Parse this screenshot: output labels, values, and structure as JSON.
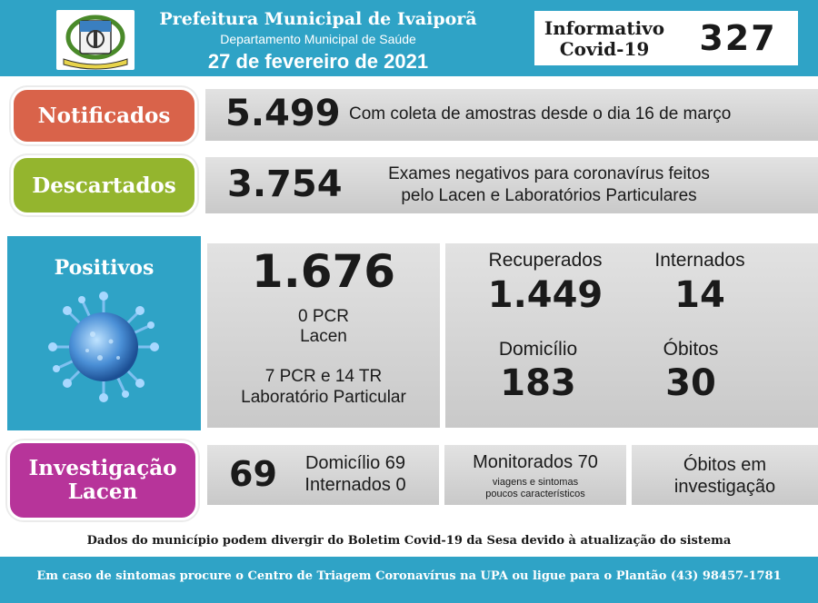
{
  "header": {
    "title": "Prefeitura Municipal de Ivaiporã",
    "department": "Departamento Municipal de Saúde",
    "date": "27 de fevereiro de 2021",
    "bulletin_label_line1": "Informativo",
    "bulletin_label_line2": "Covid-19",
    "bulletin_number": "327",
    "logo_icon": "municipal-coat-of-arms"
  },
  "notificados": {
    "label": "Notificados",
    "value": "5.499",
    "description": "Com coleta de amostras desde o dia 16 de março"
  },
  "descartados": {
    "label": "Descartados",
    "value": "3.754",
    "description_line1": "Exames negativos para coronavírus feitos",
    "description_line2": "pelo Lacen e Laboratórios Particulares"
  },
  "positivos": {
    "label": "Positivos",
    "value": "1.676",
    "lacen_line1": "0 PCR",
    "lacen_line2": "Lacen",
    "particular_line1": "7 PCR e 14 TR",
    "particular_line2": "Laboratório Particular",
    "icon": "coronavirus-icon"
  },
  "stats": {
    "recuperados_label": "Recuperados",
    "recuperados_value": "1.449",
    "internados_label": "Internados",
    "internados_value": "14",
    "domicilio_label": "Domicílio",
    "domicilio_value": "183",
    "obitos_label": "Óbitos",
    "obitos_value": "30"
  },
  "investigacao": {
    "label_line1": "Investigação",
    "label_line2": "Lacen",
    "value": "69",
    "domicilio": "Domicílio 69",
    "internados": "Internados 0",
    "monitorados": "Monitorados 70",
    "monitorados_sub1": "viagens e sintomas",
    "monitorados_sub2": "poucos característicos",
    "obitos_line1": "Óbitos em",
    "obitos_line2": "investigação"
  },
  "disclaimer": "Dados do município podem divergir do Boletim Covid-19 da Sesa devido à atualização do sistema",
  "footer": "Em caso de sintomas procure o Centro de Triagem Coronavírus na UPA ou ligue para o Plantão (43) 98457-1781",
  "colors": {
    "header_blue": "#2fa3c6",
    "notificados": "#d9634a",
    "descartados": "#94b52e",
    "investigacao": "#b7349a"
  }
}
